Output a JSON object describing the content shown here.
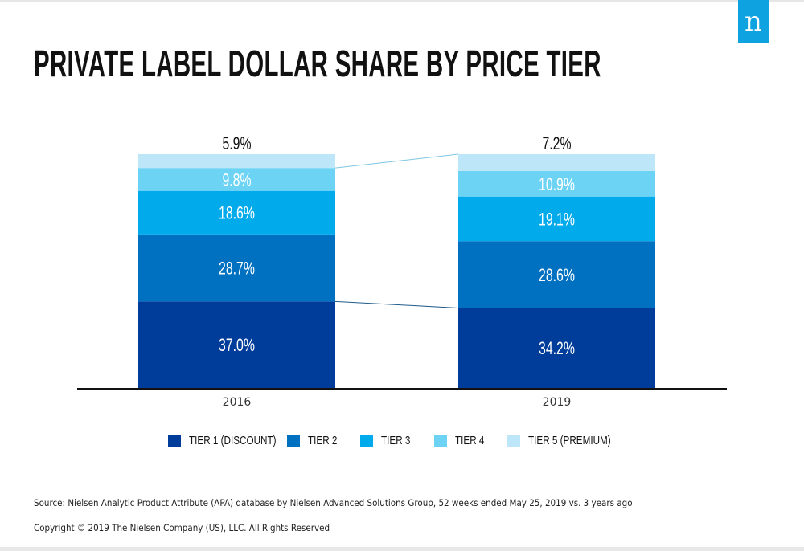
{
  "logo": {
    "glyph": "n",
    "color": "#0ea2e0"
  },
  "title": "PRIVATE LABEL DOLLAR SHARE BY PRICE TIER",
  "chart_data": {
    "type": "bar",
    "stacked": true,
    "title": "PRIVATE LABEL DOLLAR SHARE BY PRICE TIER",
    "categories": [
      "2016",
      "2019"
    ],
    "series": [
      {
        "name": "TIER 1 (DISCOUNT)",
        "color": "#003d9b",
        "values": [
          37.0,
          34.2
        ],
        "labels": [
          "37.0%",
          "34.2%"
        ]
      },
      {
        "name": "TIER 2",
        "color": "#0071c1",
        "values": [
          28.7,
          28.6
        ],
        "labels": [
          "28.7%",
          "28.6%"
        ]
      },
      {
        "name": "TIER 3",
        "color": "#00aaeb",
        "values": [
          18.6,
          19.1
        ],
        "labels": [
          "18.6%",
          "19.1%"
        ]
      },
      {
        "name": "TIER 4",
        "color": "#6dd3f5",
        "values": [
          9.8,
          10.9
        ],
        "labels": [
          "9.8%",
          "10.9%"
        ]
      },
      {
        "name": "TIER 5 (PREMIUM)",
        "color": "#bde7f8",
        "values": [
          5.9,
          7.2
        ],
        "labels": [
          "5.9%",
          "7.2%"
        ]
      }
    ],
    "xlabel": "",
    "ylabel": "",
    "ylim": [
      0,
      100
    ],
    "grid": false,
    "legend": "bottom",
    "connectors": [
      "top of TIER 4 (2016) to top of stack (2019)",
      "top of TIER 1 (2016) to top of TIER 1 (2019)"
    ]
  },
  "footer": {
    "source": "Source: Nielsen Analytic Product Attribute (APA) database by Nielsen Advanced Solutions Group, 52 weeks ended May 25, 2019 vs. 3 years ago",
    "copyright": "Copyright © 2019 The Nielsen Company (US), LLC. All Rights Reserved"
  }
}
